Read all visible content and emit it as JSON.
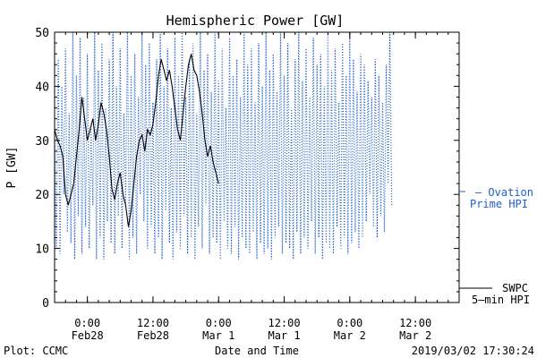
{
  "chart_data": {
    "type": "line",
    "title": "Hemispheric Power [GW]",
    "xlabel": "Date and Time",
    "ylabel": "P [GW]",
    "ylim": [
      0,
      50
    ],
    "y_ticks": [
      0,
      10,
      20,
      30,
      40,
      50
    ],
    "xlim": [
      "2019-02-27T18:00",
      "2019-03-02T20:00"
    ],
    "x_ticks": [
      {
        "t": "2019-02-28T00:00",
        "time": "0:00",
        "date": "Feb28"
      },
      {
        "t": "2019-02-28T12:00",
        "time": "12:00",
        "date": "Feb28"
      },
      {
        "t": "2019-03-01T00:00",
        "time": "0:00",
        "date": "Mar 1"
      },
      {
        "t": "2019-03-01T12:00",
        "time": "12:00",
        "date": "Mar 1"
      },
      {
        "t": "2019-03-02T00:00",
        "time": "0:00",
        "date": "Mar 2"
      },
      {
        "t": "2019-03-02T12:00",
        "time": "12:00",
        "date": "Mar 2"
      }
    ],
    "grid": false,
    "legend_placement": "right",
    "footer_left": "Plot: CCMC",
    "footer_right": "2019/03/02 17:30:24",
    "series": [
      {
        "name": "Ovation Prime HPI",
        "legend_lines": [
          "— Ovation",
          "Prime HPI"
        ],
        "color": "#1f5fc8",
        "style": "dotted",
        "time_start": "2019-02-27T18:00",
        "step_minutes": 20,
        "values": [
          30,
          10,
          45,
          9,
          40,
          20,
          47,
          13,
          35,
          11,
          50,
          8,
          42,
          16,
          49,
          9,
          38,
          14,
          46,
          10,
          33,
          18,
          50,
          8,
          43,
          12,
          48,
          8,
          36,
          15,
          45,
          11,
          50,
          9,
          40,
          16,
          47,
          10,
          35,
          18,
          50,
          8,
          42,
          12,
          46,
          9,
          38,
          20,
          50,
          15,
          44,
          10,
          48,
          14,
          37,
          9,
          45,
          12,
          50,
          8,
          40,
          17,
          47,
          11,
          36,
          8,
          49,
          13,
          42,
          10,
          50,
          16,
          38,
          9,
          45,
          12,
          48,
          8,
          35,
          14,
          50,
          10,
          43,
          18,
          46,
          9,
          39,
          12,
          50,
          11,
          41,
          8,
          47,
          15,
          36,
          10,
          49,
          9,
          42,
          14,
          45,
          8,
          38,
          12,
          50,
          10,
          44,
          9,
          47,
          13,
          37,
          8,
          48,
          11,
          40,
          9,
          50,
          10,
          43,
          8,
          46,
          12,
          39,
          14,
          50,
          9,
          42,
          11,
          48,
          10,
          36,
          8,
          45,
          13,
          50,
          9,
          41,
          12,
          47,
          10,
          38,
          15,
          49,
          9,
          44,
          12,
          46,
          8,
          40,
          11,
          50,
          10,
          43,
          9,
          47,
          14,
          37,
          10,
          48,
          12,
          42,
          9,
          50,
          11,
          45,
          13,
          39,
          10,
          46,
          12,
          44,
          15,
          41,
          20,
          38,
          14,
          45,
          12,
          42,
          16,
          37,
          13,
          44,
          22,
          50,
          18
        ]
      },
      {
        "name": "SWPC 5-min HPI",
        "legend_lines": [
          "SWPC",
          "5–min HPI"
        ],
        "color": "#000000",
        "style": "solid",
        "x": [
          "2019-02-27T18:00",
          "2019-02-27T18:30",
          "2019-02-27T19:00",
          "2019-02-27T19:30",
          "2019-02-27T20:00",
          "2019-02-27T20:30",
          "2019-02-27T21:00",
          "2019-02-27T21:30",
          "2019-02-27T22:00",
          "2019-02-27T22:30",
          "2019-02-27T23:00",
          "2019-02-27T23:30",
          "2019-02-28T00:00",
          "2019-02-28T00:30",
          "2019-02-28T01:00",
          "2019-02-28T01:30",
          "2019-02-28T02:00",
          "2019-02-28T02:30",
          "2019-02-28T03:00",
          "2019-02-28T03:30",
          "2019-02-28T04:00",
          "2019-02-28T04:30",
          "2019-02-28T05:00",
          "2019-02-28T05:30",
          "2019-02-28T06:00",
          "2019-02-28T06:30",
          "2019-02-28T07:00",
          "2019-02-28T07:30",
          "2019-02-28T08:00",
          "2019-02-28T08:30",
          "2019-02-28T09:00",
          "2019-02-28T09:30",
          "2019-02-28T10:00",
          "2019-02-28T10:30",
          "2019-02-28T11:00",
          "2019-02-28T11:30",
          "2019-02-28T12:00",
          "2019-02-28T12:30",
          "2019-02-28T13:00",
          "2019-02-28T13:30",
          "2019-02-28T14:00",
          "2019-02-28T14:30",
          "2019-02-28T15:00",
          "2019-02-28T15:30",
          "2019-02-28T16:00",
          "2019-02-28T16:30",
          "2019-02-28T17:00",
          "2019-02-28T17:30",
          "2019-02-28T18:00",
          "2019-02-28T18:30",
          "2019-02-28T19:00",
          "2019-02-28T19:30",
          "2019-02-28T20:00",
          "2019-02-28T20:30",
          "2019-02-28T21:00",
          "2019-02-28T21:30",
          "2019-02-28T22:00",
          "2019-02-28T22:30",
          "2019-02-28T23:00",
          "2019-02-28T23:30",
          "2019-03-01T00:00"
        ],
        "y": [
          32,
          30,
          29,
          27,
          20,
          18,
          20,
          22,
          27,
          32,
          38,
          34,
          30,
          32,
          34,
          30,
          33,
          37,
          35,
          32,
          27,
          21,
          19,
          22,
          24,
          20,
          18,
          14,
          17,
          22,
          27,
          30,
          31,
          28,
          32,
          31,
          33,
          37,
          42,
          45,
          43,
          41,
          43,
          40,
          36,
          32,
          30,
          35,
          40,
          44,
          46,
          43,
          42,
          39,
          35,
          30,
          27,
          29,
          26,
          24,
          22
        ]
      }
    ]
  }
}
